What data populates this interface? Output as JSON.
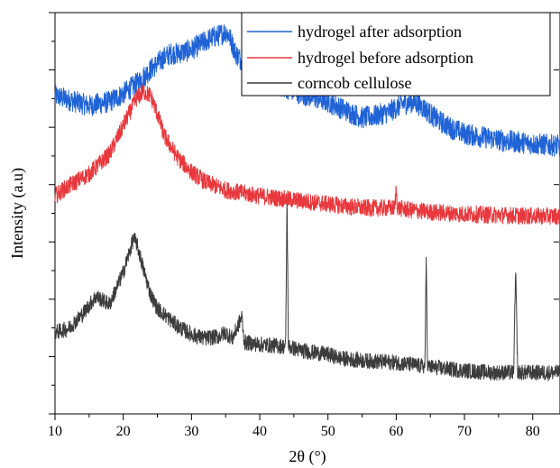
{
  "chart_data": {
    "type": "line",
    "title": "",
    "xlabel": "2θ (°)",
    "ylabel": "Intensity (a.u)",
    "xlim": [
      10,
      84
    ],
    "ylim": [
      0,
      10
    ],
    "xticks": [
      10,
      20,
      30,
      40,
      50,
      60,
      70,
      80
    ],
    "yticks_labeled": false,
    "grid": false,
    "legend_position": "top-right",
    "series": [
      {
        "name": "hydrogel after adsorption",
        "color": "#1f63d6",
        "noise": 0.28,
        "x": [
          10,
          12,
          15,
          18,
          20,
          22,
          24,
          26,
          27,
          28,
          30,
          32,
          33,
          34,
          35,
          35.5,
          36.5,
          38,
          40,
          43,
          46,
          50,
          53,
          55,
          57,
          59,
          61,
          62.5,
          64,
          66,
          68,
          70,
          75,
          80,
          84
        ],
        "y": [
          7.93,
          7.83,
          7.68,
          7.78,
          7.98,
          8.23,
          8.58,
          8.88,
          8.98,
          8.98,
          9.08,
          9.28,
          9.38,
          9.43,
          9.53,
          9.43,
          8.98,
          8.68,
          8.38,
          8.18,
          7.98,
          7.78,
          7.53,
          7.38,
          7.43,
          7.53,
          7.73,
          7.78,
          7.63,
          7.33,
          7.13,
          6.98,
          6.83,
          6.73,
          6.68
        ]
      },
      {
        "name": "hydrogel before adsorption",
        "color": "#e8383d",
        "noise": 0.22,
        "x": [
          10,
          12,
          15,
          18,
          20,
          22,
          23,
          24,
          25,
          26,
          28,
          30,
          32,
          35,
          40,
          45,
          50,
          55,
          59.8,
          60,
          60.2,
          62,
          65,
          70,
          80,
          84
        ],
        "y": [
          5.43,
          5.68,
          5.98,
          6.48,
          7.18,
          7.88,
          8.03,
          7.93,
          7.48,
          6.93,
          6.38,
          6.03,
          5.78,
          5.58,
          5.43,
          5.33,
          5.23,
          5.13,
          5.13,
          5.63,
          5.13,
          5.08,
          5.03,
          4.98,
          4.93,
          4.93
        ]
      },
      {
        "name": "corncob cellulose",
        "color": "#3c3c3c",
        "noise": 0.2,
        "x": [
          10,
          12,
          14,
          16,
          18,
          20,
          21,
          21.5,
          22,
          23,
          24,
          25,
          26,
          28,
          30,
          32,
          34,
          35,
          36,
          37.4,
          37.6,
          37.8,
          40,
          43.8,
          44,
          44.2,
          46,
          48,
          50,
          52,
          55,
          60,
          64.2,
          64.4,
          64.6,
          67,
          70,
          74,
          77.2,
          77.5,
          77.8,
          80,
          84
        ],
        "y": [
          2.03,
          2.13,
          2.48,
          2.93,
          2.73,
          3.53,
          4.08,
          4.38,
          4.23,
          3.58,
          2.98,
          2.63,
          2.48,
          2.18,
          1.98,
          1.88,
          1.93,
          2.03,
          1.88,
          2.43,
          1.98,
          1.78,
          1.73,
          1.68,
          5.43,
          1.68,
          1.58,
          1.53,
          1.48,
          1.38,
          1.33,
          1.28,
          1.18,
          3.88,
          1.18,
          1.13,
          1.08,
          1.03,
          1.03,
          3.58,
          1.03,
          1.03,
          1.03
        ]
      }
    ]
  }
}
